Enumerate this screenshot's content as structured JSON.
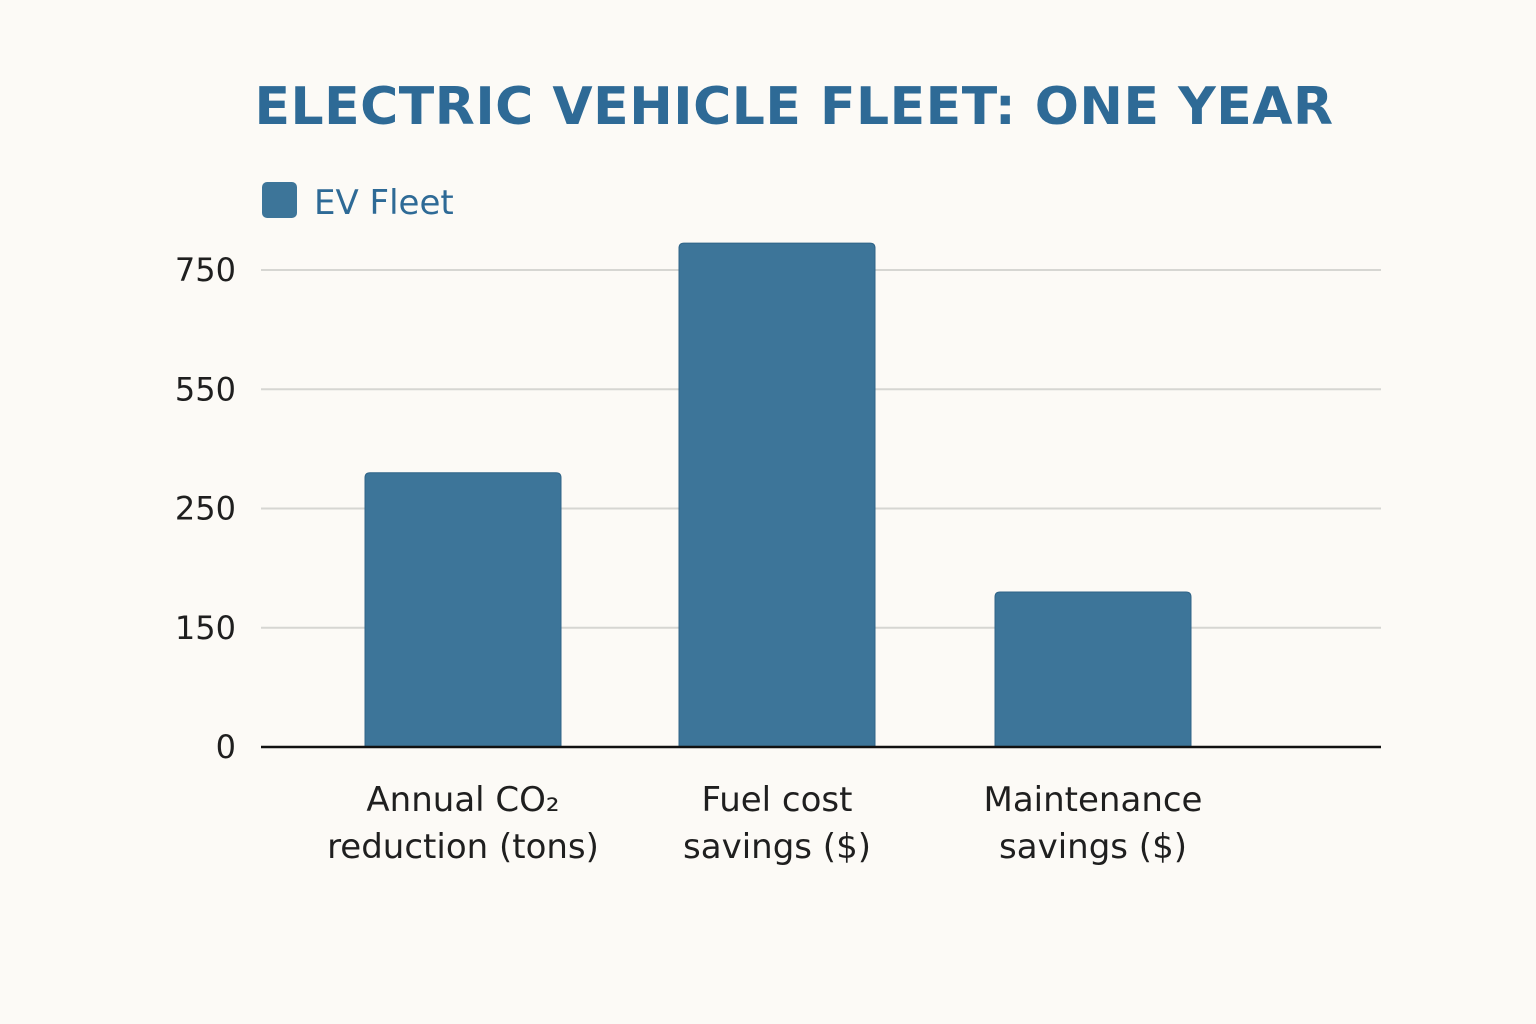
{
  "chart_data": {
    "type": "bar",
    "title": "ELECTRIC VEHICLE FLEET: ONE YEAR",
    "xlabel": "",
    "ylabel": "",
    "categories": [
      [
        "Annual CO₂",
        "reduction (tons)"
      ],
      [
        "Fuel cost",
        "savings ($)"
      ],
      [
        "Maintenance",
        "savings ($)"
      ]
    ],
    "series": [
      {
        "name": "EV Fleet",
        "color": "#3d7599",
        "values": [
          340,
          795,
          180
        ]
      }
    ],
    "yticks": [
      0,
      150,
      250,
      550,
      750
    ],
    "ytick_labels": [
      "0",
      "150",
      "250",
      "550",
      "750"
    ],
    "ylim": [
      0,
      795
    ],
    "grid": true,
    "legend": {
      "position": "top-left",
      "entries": [
        "EV Fleet"
      ]
    },
    "colors": {
      "title": "#2e6a96",
      "bar": "#3d7599",
      "grid": "#d6d6d2",
      "axis": "#111111",
      "text": "#1f1f1f",
      "background": "#fcfaf6"
    }
  }
}
